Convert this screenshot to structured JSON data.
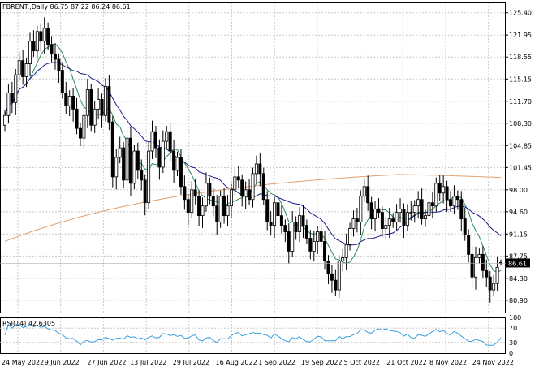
{
  "header": {
    "symbol_line": "FBRENT.,Daily  86.75 87.22 86.24 86.61"
  },
  "rsi_panel": {
    "label": "RSI(14) 42.6305",
    "levels": [
      "100",
      "70",
      "30",
      "0"
    ]
  },
  "chart_data": [
    {
      "type": "candlestick",
      "title": "FBRENT.,Daily",
      "ohlc_last": {
        "open": 86.75,
        "high": 87.22,
        "low": 86.24,
        "close": 86.61
      },
      "current_price_label": "86.61",
      "ylim": [
        79.0,
        127.0
      ],
      "y_ticks": [
        125.4,
        121.95,
        118.55,
        115.15,
        111.7,
        108.3,
        104.85,
        101.45,
        98.0,
        94.6,
        91.15,
        87.75,
        84.3,
        80.9
      ],
      "y_tick_labels": [
        "125.40",
        "121.95",
        "118.55",
        "115.15",
        "111.70",
        "108.30",
        "104.85",
        "101.45",
        "98.00",
        "94.60",
        "91.15",
        "87.75",
        "84.30",
        "80.90"
      ],
      "x_tick_labels": [
        "24 May 2022",
        "9 Jun 2022",
        "27 Jun 2022",
        "13 Jul 2022",
        "29 Jul 2022",
        "16 Aug 2022",
        "1 Sep 2022",
        "19 Sep 2022",
        "5 Oct 2022",
        "21 Oct 2022",
        "8 Nov 2022",
        "24 Nov 2022"
      ],
      "grid": true,
      "moving_averages": [
        {
          "color": "#2e8b57",
          "period_style": "fast"
        },
        {
          "color": "#1a1a8c",
          "period_style": "medium"
        },
        {
          "color": "#e0a070",
          "period_style": "slow"
        }
      ],
      "closes": [
        109.5,
        113.0,
        111.5,
        115.8,
        118.0,
        115.5,
        117.5,
        121.0,
        119.5,
        122.5,
        121.0,
        123.0,
        120.5,
        119.0,
        118.2,
        116.5,
        113.0,
        111.0,
        112.5,
        110.5,
        107.5,
        106.0,
        109.5,
        113.5,
        108.0,
        110.5,
        112.0,
        109.5,
        114.0,
        108.5,
        100.0,
        103.0,
        104.5,
        99.5,
        106.0,
        99.0,
        104.0,
        101.0,
        99.5,
        96.0,
        104.0,
        107.0,
        104.5,
        101.5,
        105.5,
        107.0,
        104.0,
        101.0,
        103.0,
        98.5,
        96.5,
        94.5,
        98.0,
        97.0,
        94.0,
        95.5,
        99.0,
        97.0,
        95.5,
        93.0,
        97.0,
        94.0,
        95.5,
        98.0,
        100.0,
        99.5,
        97.0,
        98.0,
        96.5,
        100.5,
        102.0,
        100.5,
        96.5,
        93.0,
        92.5,
        96.0,
        94.0,
        92.5,
        91.5,
        88.5,
        93.0,
        91.5,
        94.0,
        92.5,
        90.5,
        88.5,
        90.0,
        91.5,
        90.0,
        87.0,
        85.0,
        84.0,
        82.5,
        87.0,
        87.5,
        89.5,
        92.0,
        93.5,
        93.0,
        97.0,
        98.5,
        96.0,
        93.5,
        95.0,
        94.5,
        92.0,
        92.5,
        93.5,
        93.0,
        94.5,
        95.0,
        92.5,
        94.5,
        94.5,
        95.5,
        96.5,
        93.5,
        94.0,
        96.0,
        95.5,
        99.0,
        97.5,
        98.5,
        96.5,
        95.5,
        97.0,
        96.5,
        93.5,
        91.0,
        88.0,
        84.5,
        87.5,
        88.0,
        85.5,
        84.5,
        82.5,
        83.5,
        86.0,
        86.61
      ],
      "rsi_value": 42.6305,
      "rsi_range": [
        0,
        100
      ],
      "rsi_levels": [
        70,
        30
      ]
    }
  ]
}
